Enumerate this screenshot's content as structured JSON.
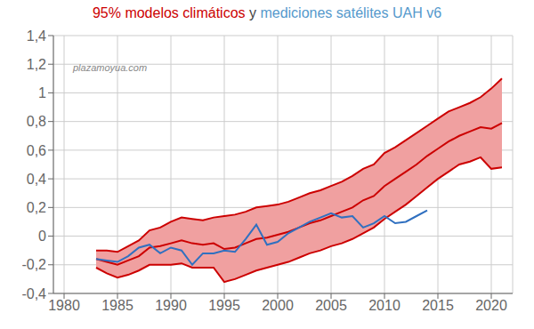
{
  "chart_data": {
    "type": "line",
    "title": [
      {
        "text": "95% modelos climáticos",
        "color": "#cc0000"
      },
      {
        "text": " y ",
        "color": "#444444"
      },
      {
        "text": "mediciones satélites UAH v6",
        "color": "#5599cc"
      }
    ],
    "annotations": [
      {
        "text": "plazamoyua.com"
      }
    ],
    "grid": true,
    "xlim": [
      1979,
      2022
    ],
    "xticks": [
      1980,
      1985,
      1990,
      1995,
      2000,
      2005,
      2010,
      2015,
      2020
    ],
    "ylim": [
      -0.4,
      1.4
    ],
    "yticks": [
      {
        "value": -0.4,
        "label": "-0,4"
      },
      {
        "value": -0.2,
        "label": "-0,2"
      },
      0,
      {
        "value": 0.2,
        "label": "0,2"
      },
      {
        "value": 0.4,
        "label": "0,4"
      },
      {
        "value": 0.6,
        "label": "0,6"
      },
      {
        "value": 0.8,
        "label": "0,8"
      },
      1,
      {
        "value": 1.2,
        "label": "1,2"
      },
      {
        "value": 1.4,
        "label": "1,4"
      }
    ],
    "x": [
      1983,
      1984,
      1985,
      1986,
      1987,
      1988,
      1989,
      1990,
      1991,
      1992,
      1993,
      1994,
      1995,
      1996,
      1997,
      1998,
      1999,
      2000,
      2001,
      2002,
      2003,
      2004,
      2005,
      2006,
      2007,
      2008,
      2009,
      2010,
      2011,
      2012,
      2013,
      2014,
      2015,
      2016,
      2017,
      2018,
      2019,
      2020,
      2021
    ],
    "series": [
      {
        "type": "line",
        "color": "#cc0000",
        "values": [
          -0.1,
          -0.1,
          -0.11,
          -0.07,
          -0.03,
          0.04,
          0.06,
          0.1,
          0.13,
          0.12,
          0.11,
          0.13,
          0.14,
          0.15,
          0.17,
          0.2,
          0.21,
          0.22,
          0.24,
          0.27,
          0.3,
          0.32,
          0.35,
          0.38,
          0.42,
          0.47,
          0.5,
          0.58,
          0.62,
          0.67,
          0.72,
          0.77,
          0.82,
          0.87,
          0.9,
          0.93,
          0.97,
          1.03,
          1.1
        ]
      },
      {
        "type": "line",
        "color": "#cc0000",
        "values": [
          -0.22,
          -0.26,
          -0.29,
          -0.27,
          -0.24,
          -0.2,
          -0.2,
          -0.2,
          -0.19,
          -0.22,
          -0.22,
          -0.22,
          -0.32,
          -0.3,
          -0.27,
          -0.24,
          -0.22,
          -0.2,
          -0.18,
          -0.15,
          -0.12,
          -0.1,
          -0.07,
          -0.05,
          -0.02,
          0.02,
          0.06,
          0.12,
          0.17,
          0.22,
          0.28,
          0.34,
          0.4,
          0.45,
          0.5,
          0.52,
          0.55,
          0.47,
          0.48
        ]
      },
      {
        "type": "line",
        "color": "#cc0000",
        "values": [
          -0.16,
          -0.18,
          -0.2,
          -0.17,
          -0.14,
          -0.08,
          -0.07,
          -0.05,
          -0.03,
          -0.05,
          -0.06,
          -0.05,
          -0.09,
          -0.08,
          -0.05,
          -0.02,
          -0.01,
          0.01,
          0.03,
          0.06,
          0.09,
          0.11,
          0.14,
          0.17,
          0.2,
          0.25,
          0.28,
          0.35,
          0.4,
          0.45,
          0.5,
          0.56,
          0.61,
          0.66,
          0.7,
          0.73,
          0.76,
          0.75,
          0.79
        ]
      },
      {
        "type": "line",
        "color": "#3070c0",
        "values": [
          -0.16,
          -0.17,
          -0.18,
          -0.14,
          -0.08,
          -0.06,
          -0.12,
          -0.08,
          -0.1,
          -0.2,
          -0.12,
          -0.12,
          -0.1,
          -0.11,
          -0.02,
          0.08,
          -0.06,
          -0.04,
          0.02,
          0.06,
          0.1,
          0.13,
          0.16,
          0.13,
          0.14,
          0.06,
          0.09,
          0.14,
          0.09,
          0.1,
          0.14,
          0.18,
          null,
          null,
          null,
          null,
          null,
          null,
          null
        ]
      },
      {
        "type": "band",
        "color": "#f0a0a0",
        "between": [
          1,
          0
        ]
      }
    ]
  }
}
